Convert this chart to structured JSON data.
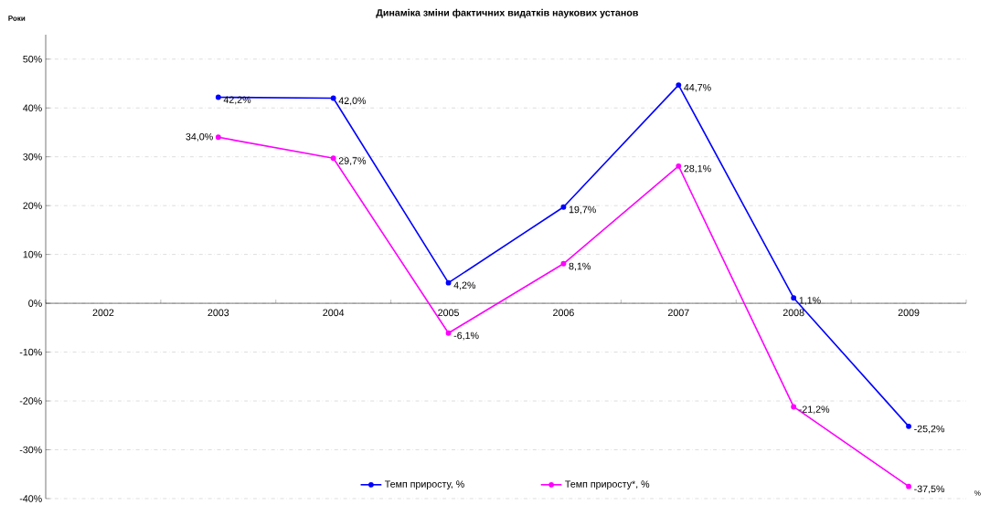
{
  "chart_data": {
    "type": "line",
    "title": "Динаміка зміни фактичних видатків  наукових установ",
    "xlabel": "Роки",
    "ylabel": "%",
    "categories": [
      "2002",
      "2003",
      "2004",
      "2005",
      "2006",
      "2007",
      "2008",
      "2009"
    ],
    "series": [
      {
        "name": "Темп приросту, %",
        "color": "#0000ff",
        "values": [
          null,
          42.2,
          42.0,
          4.2,
          19.7,
          44.7,
          1.1,
          -25.2
        ],
        "value_labels": [
          null,
          "42,2%",
          "42,0%",
          "4,2%",
          "19,7%",
          "44,7%",
          "1,1%",
          "-25,2%"
        ]
      },
      {
        "name": "Темп приросту*, %",
        "color": "#ff00ff",
        "values": [
          null,
          34.0,
          29.7,
          -6.1,
          8.1,
          28.1,
          -21.2,
          -37.5
        ],
        "value_labels": [
          null,
          "34,0%",
          "29,7%",
          "-6,1%",
          "8,1%",
          "28,1%",
          "-21,2%",
          "-37,5%"
        ]
      }
    ],
    "ylim": [
      -40,
      55
    ],
    "yticks": [
      {
        "value": -40,
        "label": "-40%"
      },
      {
        "value": -30,
        "label": "-30%"
      },
      {
        "value": -20,
        "label": "-20%"
      },
      {
        "value": -10,
        "label": "-10%"
      },
      {
        "value": 0,
        "label": "0%"
      },
      {
        "value": 10,
        "label": "10%"
      },
      {
        "value": 20,
        "label": "20%"
      },
      {
        "value": 30,
        "label": "30%"
      },
      {
        "value": 40,
        "label": "40%"
      },
      {
        "value": 50,
        "label": "50%"
      }
    ],
    "grid": "y",
    "legend": "bottom",
    "marker": "circle",
    "line_style": "solid"
  }
}
